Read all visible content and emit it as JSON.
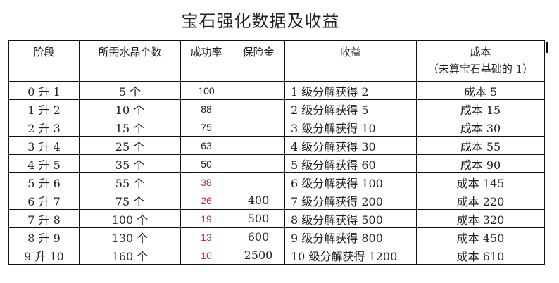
{
  "title": "宝石强化数据及收益",
  "headers": [
    "阶段",
    "所需水晶个数",
    "成功率",
    "保险金",
    "收益",
    "成本"
  ],
  "cost_note": "（未算宝石基础的 1）",
  "highlight_color": "#b8324a",
  "rows": [
    {
      "stage": "0 升 1",
      "crystals": "5 个",
      "rate": "100",
      "insurance": "",
      "gain": "1 级分解获得 2",
      "cost": "成本 5",
      "red": false
    },
    {
      "stage": "1 升 2",
      "crystals": "10 个",
      "rate": "88",
      "insurance": "",
      "gain": "2 级分解获得 5",
      "cost": "成本 15",
      "red": false
    },
    {
      "stage": "2 升 3",
      "crystals": "15 个",
      "rate": "75",
      "insurance": "",
      "gain": "3 级分解获得 10",
      "cost": "成本 30",
      "red": false
    },
    {
      "stage": "3 升 4",
      "crystals": "25 个",
      "rate": "63",
      "insurance": "",
      "gain": "4 级分解获得 30",
      "cost": "成本 55",
      "red": false
    },
    {
      "stage": "4 升 5",
      "crystals": "35 个",
      "rate": "50",
      "insurance": "",
      "gain": "5 级分解获得 60",
      "cost": "成本 90",
      "red": false
    },
    {
      "stage": "5 升 6",
      "crystals": "55 个",
      "rate": "38",
      "insurance": "",
      "gain": "6 级分解获得 100",
      "cost": "成本 145",
      "red": true
    },
    {
      "stage": "6 升 7",
      "crystals": "75 个",
      "rate": "26",
      "insurance": "400",
      "gain": "7 级分解获得 200",
      "cost": "成本 220",
      "red": true
    },
    {
      "stage": "7 升 8",
      "crystals": "100 个",
      "rate": "19",
      "insurance": "500",
      "gain": "8 级分解获得 500",
      "cost": "成本 320",
      "red": true
    },
    {
      "stage": "8 升 9",
      "crystals": "130 个",
      "rate": "13",
      "insurance": "600",
      "gain": "9 级分解获得 800",
      "cost": "成本 450",
      "red": true
    },
    {
      "stage": "9 升 10",
      "crystals": "160 个",
      "rate": "10",
      "insurance": "2500",
      "gain": "10 级分解获得 1200",
      "cost": "成本 610",
      "red": true
    }
  ]
}
